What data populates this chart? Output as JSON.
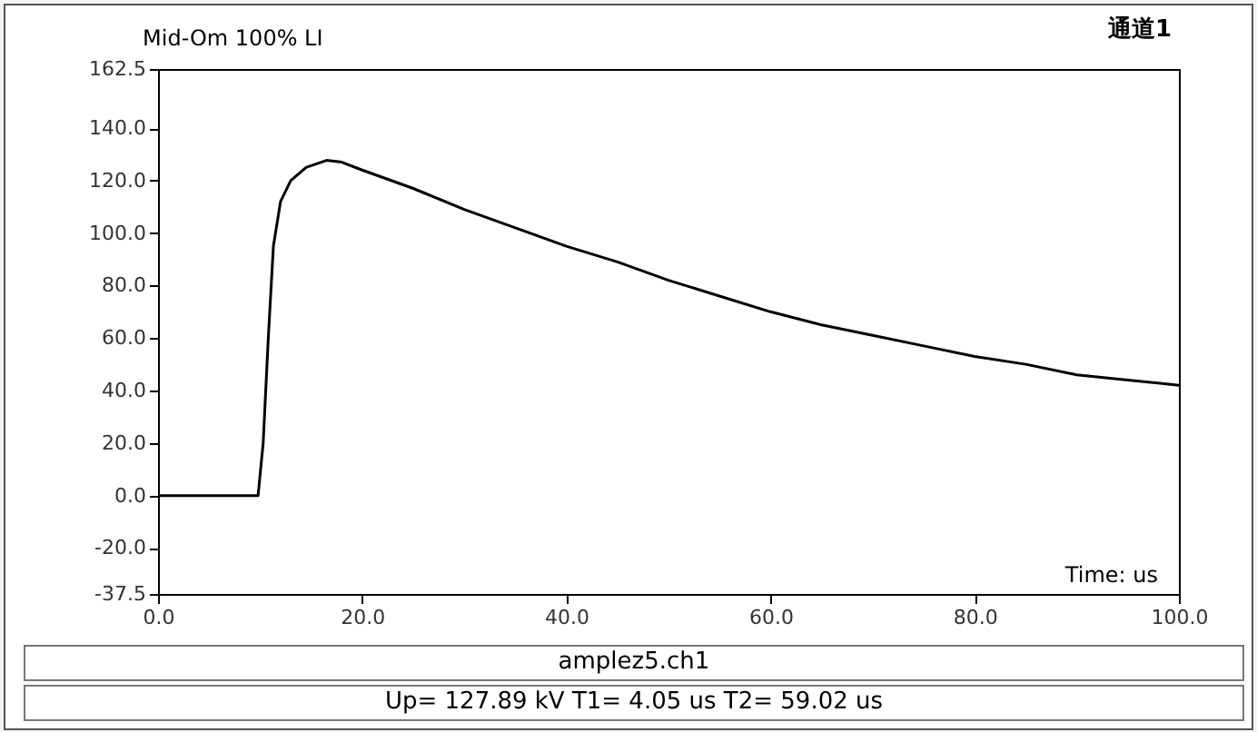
{
  "chart_data": {
    "type": "line",
    "title": "Mid-Om 100% LI",
    "xlabel": "Time: us",
    "annotations": [
      "通道1",
      "amplez5.ch1",
      "Up= 127.89 kV  T1= 4.05 us  T2= 59.02 us"
    ],
    "x": [
      0,
      9.8,
      10.3,
      10.8,
      11.3,
      12,
      13,
      14.5,
      16.5,
      18,
      20,
      25,
      30,
      35,
      40,
      45,
      50,
      55,
      60,
      65,
      70,
      75,
      80,
      85,
      90,
      95,
      100
    ],
    "series": [
      {
        "color": "#000000",
        "values": [
          0,
          0,
          20,
          60,
          95,
          112,
          120,
          125,
          127.7,
          127,
          124,
          117,
          109,
          102,
          95,
          89,
          82,
          76,
          70,
          65,
          61,
          57,
          53,
          50,
          46,
          44,
          42
        ]
      }
    ],
    "xlim": [
      0,
      100
    ],
    "xticks": [
      {
        "value": 0,
        "label": "0.0"
      },
      {
        "value": 20,
        "label": "20.0"
      },
      {
        "value": 40,
        "label": "40.0"
      },
      {
        "value": 60,
        "label": "60.0"
      },
      {
        "value": 80,
        "label": "80.0"
      },
      {
        "value": 100,
        "label": "100.0"
      }
    ],
    "ylim": [
      -37.5,
      162.5
    ],
    "yticks": [
      {
        "value": -37.5,
        "label": "-37.5"
      },
      {
        "value": -20,
        "label": "-20.0"
      },
      {
        "value": 0,
        "label": "0.0"
      },
      {
        "value": 20,
        "label": "20.0"
      },
      {
        "value": 40,
        "label": "40.0"
      },
      {
        "value": 60,
        "label": "60.0"
      },
      {
        "value": 80,
        "label": "80.0"
      },
      {
        "value": 100,
        "label": "100.0"
      },
      {
        "value": 120,
        "label": "120.0"
      },
      {
        "value": 140,
        "label": "140.0"
      },
      {
        "value": 162.5,
        "label": "162.5"
      }
    ],
    "grid": false,
    "marker": "none",
    "line_style": "solid",
    "legend": false
  }
}
